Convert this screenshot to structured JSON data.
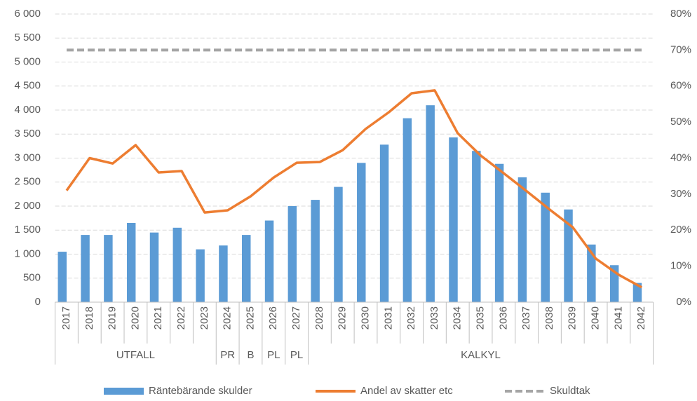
{
  "chart_data": {
    "type": "bar_line",
    "categories": [
      "2017",
      "2018",
      "2019",
      "2020",
      "2021",
      "2022",
      "2023",
      "2024",
      "2025",
      "2026",
      "2027",
      "2028",
      "2029",
      "2030",
      "2031",
      "2032",
      "2033",
      "2034",
      "2035",
      "2036",
      "2037",
      "2038",
      "2039",
      "2040",
      "2041",
      "2042"
    ],
    "groups": [
      {
        "label": "UTFALL",
        "span": 7
      },
      {
        "label": "PR",
        "span": 1
      },
      {
        "label": "B",
        "span": 1
      },
      {
        "label": "PL",
        "span": 1
      },
      {
        "label": "PL",
        "span": 1
      },
      {
        "label": "KALKYL",
        "span": 15
      }
    ],
    "series": [
      {
        "name": "Räntebärande skulder",
        "type": "bar",
        "color": "#5b9bd5",
        "values": [
          1050,
          1400,
          1400,
          1650,
          1450,
          1550,
          1100,
          1180,
          1400,
          1700,
          2000,
          2130,
          2400,
          2900,
          3280,
          3830,
          4100,
          3430,
          3150,
          2880,
          2600,
          2280,
          1930,
          1200,
          770,
          400
        ]
      },
      {
        "name": "Andel av skatter etc",
        "type": "line",
        "axis": "y2",
        "color": "#ed7d31",
        "values": [
          31,
          40,
          38.5,
          43.6,
          36,
          36.4,
          24.9,
          25.5,
          29.4,
          34.6,
          38.7,
          38.9,
          42.2,
          48.1,
          52.7,
          58,
          58.8,
          46.9,
          40.7,
          35.8,
          30.8,
          25.7,
          20.8,
          12.1,
          7.6,
          4.1
        ]
      },
      {
        "name": "Skuldtak",
        "type": "dashed",
        "color": "#a5a5a5",
        "values": [
          5250,
          5250,
          5250,
          5250,
          5250,
          5250,
          5250,
          5250,
          5250,
          5250,
          5250,
          5250,
          5250,
          5250,
          5250,
          5250,
          5250,
          5250,
          5250,
          5250,
          5250,
          5250,
          5250,
          5250,
          5250,
          5250
        ]
      }
    ],
    "ylim": [
      0,
      6000
    ],
    "yticks": [
      0,
      500,
      {
        "value": 1000,
        "label": "1 000"
      },
      {
        "value": 1500,
        "label": "1 500"
      },
      {
        "value": 2000,
        "label": "2 000"
      },
      {
        "value": 2500,
        "label": "2 500"
      },
      {
        "value": 3000,
        "label": "3 000"
      },
      {
        "value": 3500,
        "label": "3 500"
      },
      {
        "value": 4000,
        "label": "4 000"
      },
      {
        "value": 4500,
        "label": "4 500"
      },
      {
        "value": 5000,
        "label": "5 000"
      },
      {
        "value": 5500,
        "label": "5 500"
      },
      {
        "value": 6000,
        "label": "6 000"
      }
    ],
    "y2lim": [
      0,
      80
    ],
    "y2ticks": [
      {
        "value": 0,
        "label": "0%"
      },
      {
        "value": 10,
        "label": "10%"
      },
      {
        "value": 20,
        "label": "20%"
      },
      {
        "value": 30,
        "label": "30%"
      },
      {
        "value": 40,
        "label": "40%"
      },
      {
        "value": 50,
        "label": "50%"
      },
      {
        "value": 60,
        "label": "60%"
      },
      {
        "value": 70,
        "label": "70%"
      },
      {
        "value": 80,
        "label": "80%"
      }
    ],
    "grid": true,
    "legend": "bottom"
  }
}
